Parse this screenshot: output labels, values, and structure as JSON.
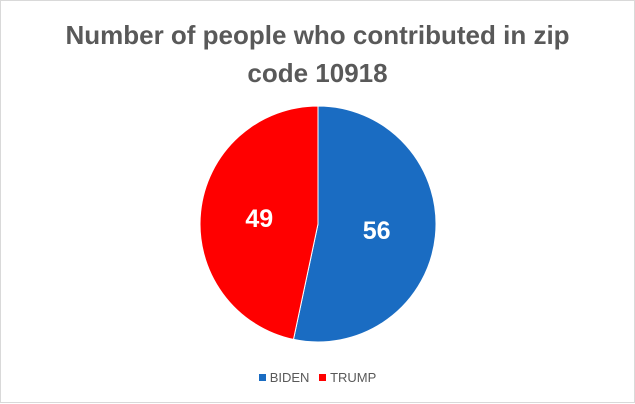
{
  "chart_data": {
    "type": "pie",
    "title": [
      "Number of people who contributed in zip",
      "code 10918"
    ],
    "categories": [
      "BIDEN",
      "TRUMP"
    ],
    "values": [
      56,
      49
    ],
    "colors": [
      "#1a6cc2",
      "#ff0000"
    ],
    "show_data_labels": true,
    "legend_position": "bottom",
    "start_angle": "12-o'clock",
    "direction": "clockwise"
  }
}
